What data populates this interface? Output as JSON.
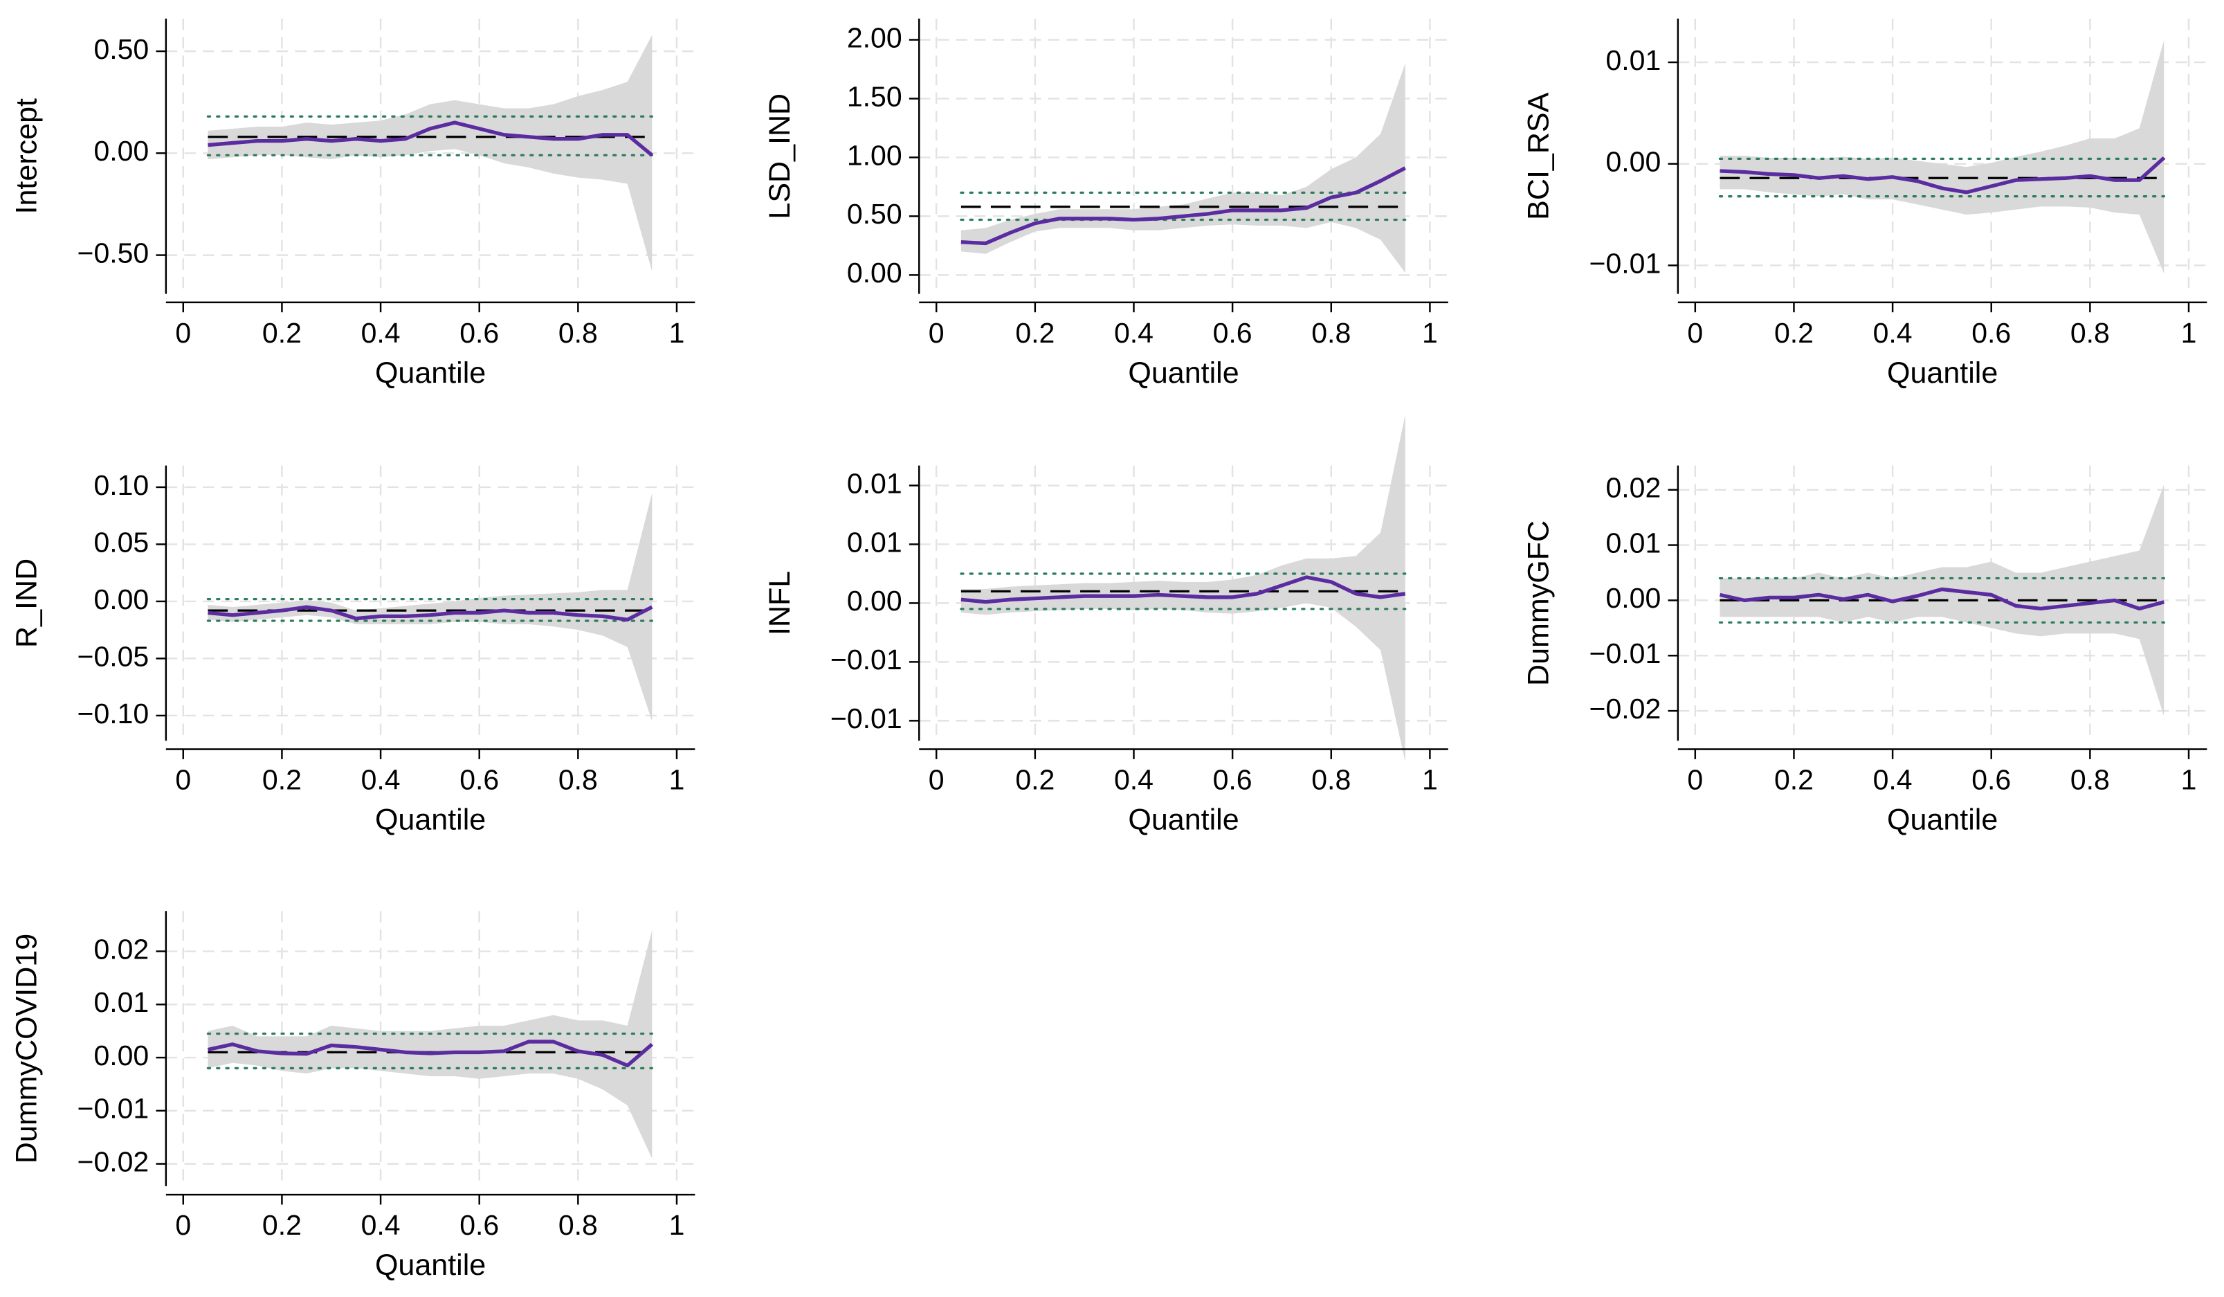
{
  "chart_data": [
    {
      "type": "line",
      "y_label": "Intercept",
      "x_label": "Quantile",
      "x": [
        0.05,
        0.1,
        0.15,
        0.2,
        0.25,
        0.3,
        0.35,
        0.4,
        0.45,
        0.5,
        0.55,
        0.6,
        0.65,
        0.7,
        0.75,
        0.8,
        0.85,
        0.9,
        0.95
      ],
      "xlim": [
        -0.035,
        1.037
      ],
      "xticks": [
        0,
        0.2,
        0.4,
        0.6,
        0.8,
        1
      ],
      "ylim": [
        -0.69,
        0.66
      ],
      "yticks": [
        {
          "value": 0.5,
          "label": "0.50"
        },
        {
          "value": 0,
          "label": "0.00"
        },
        {
          "value": -0.5,
          "label": "−0.50"
        }
      ],
      "grid": true,
      "series": [
        {
          "color": "#5b2ca0",
          "values": [
            0.04,
            0.05,
            0.06,
            0.06,
            0.07,
            0.06,
            0.07,
            0.06,
            0.07,
            0.12,
            0.15,
            0.12,
            0.09,
            0.08,
            0.07,
            0.07,
            0.09,
            0.09,
            -0.01
          ]
        }
      ],
      "band": {
        "color": "#d9d9d9",
        "lower": [
          -0.03,
          -0.02,
          -0.01,
          -0.01,
          -0.02,
          -0.03,
          -0.01,
          -0.02,
          -0.01,
          0.01,
          0.02,
          -0.01,
          -0.05,
          -0.07,
          -0.1,
          -0.12,
          -0.13,
          -0.15,
          -0.58
        ],
        "upper": [
          0.11,
          0.12,
          0.13,
          0.13,
          0.15,
          0.14,
          0.15,
          0.16,
          0.19,
          0.24,
          0.26,
          0.24,
          0.22,
          0.22,
          0.24,
          0.28,
          0.31,
          0.35,
          0.58
        ]
      },
      "ref_line": {
        "value": 0.08,
        "color": "#000000"
      },
      "ref_band": {
        "lower": -0.01,
        "upper": 0.18,
        "color": "#2e7d5b"
      }
    },
    {
      "type": "line",
      "y_label": "LSD_IND",
      "x_label": "Quantile",
      "x": [
        0.05,
        0.1,
        0.15,
        0.2,
        0.25,
        0.3,
        0.35,
        0.4,
        0.45,
        0.5,
        0.55,
        0.6,
        0.65,
        0.7,
        0.75,
        0.8,
        0.85,
        0.9,
        0.95
      ],
      "xlim": [
        -0.035,
        1.037
      ],
      "xticks": [
        0,
        0.2,
        0.4,
        0.6,
        0.8,
        1
      ],
      "ylim": [
        -0.16,
        2.18
      ],
      "yticks": [
        {
          "value": 2,
          "label": "2.00"
        },
        {
          "value": 1.5,
          "label": "1.50"
        },
        {
          "value": 1,
          "label": "1.00"
        },
        {
          "value": 0.5,
          "label": "0.50"
        },
        {
          "value": 0,
          "label": "0.00"
        }
      ],
      "grid": true,
      "series": [
        {
          "color": "#5b2ca0",
          "values": [
            0.28,
            0.27,
            0.36,
            0.44,
            0.48,
            0.48,
            0.48,
            0.47,
            0.48,
            0.5,
            0.52,
            0.55,
            0.55,
            0.55,
            0.57,
            0.66,
            0.7,
            0.8,
            0.91
          ]
        }
      ],
      "band": {
        "color": "#d9d9d9",
        "lower": [
          0.2,
          0.18,
          0.28,
          0.37,
          0.4,
          0.4,
          0.4,
          0.38,
          0.38,
          0.4,
          0.42,
          0.43,
          0.42,
          0.42,
          0.4,
          0.45,
          0.4,
          0.3,
          0.02
        ],
        "upper": [
          0.38,
          0.4,
          0.47,
          0.52,
          0.56,
          0.56,
          0.56,
          0.56,
          0.58,
          0.6,
          0.65,
          0.7,
          0.7,
          0.68,
          0.75,
          0.9,
          1.0,
          1.2,
          1.8
        ]
      },
      "ref_line": {
        "value": 0.58,
        "color": "#000000"
      },
      "ref_band": {
        "lower": 0.47,
        "upper": 0.7,
        "color": "#2e7d5b"
      }
    },
    {
      "type": "line",
      "y_label": "BCI_RSA",
      "x_label": "Quantile",
      "x": [
        0.05,
        0.1,
        0.15,
        0.2,
        0.25,
        0.3,
        0.35,
        0.4,
        0.45,
        0.5,
        0.55,
        0.6,
        0.65,
        0.7,
        0.75,
        0.8,
        0.85,
        0.9,
        0.95
      ],
      "xlim": [
        -0.035,
        1.037
      ],
      "xticks": [
        0,
        0.2,
        0.4,
        0.6,
        0.8,
        1
      ],
      "ylim": [
        -0.0128,
        0.0143
      ],
      "yticks": [
        0.01,
        {
          "value": 0,
          "label": "0.00"
        },
        {
          "value": -0.01,
          "label": "−0.01"
        }
      ],
      "grid": true,
      "series": [
        {
          "color": "#5b2ca0",
          "values": [
            -0.0007,
            -0.0008,
            -0.001,
            -0.0011,
            -0.0014,
            -0.0012,
            -0.0015,
            -0.0013,
            -0.0017,
            -0.0024,
            -0.0028,
            -0.0022,
            -0.0016,
            -0.0015,
            -0.0014,
            -0.0012,
            -0.0016,
            -0.0016,
            0.0006
          ]
        }
      ],
      "band": {
        "color": "#d9d9d9",
        "lower": [
          -0.0025,
          -0.0025,
          -0.0028,
          -0.003,
          -0.0032,
          -0.003,
          -0.0035,
          -0.0035,
          -0.004,
          -0.0045,
          -0.005,
          -0.0048,
          -0.0045,
          -0.0042,
          -0.0042,
          -0.0043,
          -0.0048,
          -0.005,
          -0.0108
        ],
        "upper": [
          0.0008,
          0.0008,
          0.0006,
          0.0006,
          0.0005,
          0.0007,
          0.0005,
          0.0006,
          0.0003,
          0,
          -0.0003,
          0.0001,
          0.0007,
          0.0012,
          0.0018,
          0.0025,
          0.0025,
          0.0035,
          0.0122
        ]
      },
      "ref_line": {
        "value": -0.0014,
        "color": "#000000"
      },
      "ref_band": {
        "lower": -0.0032,
        "upper": 0.0005,
        "color": "#2e7d5b"
      }
    },
    {
      "type": "line",
      "y_label": "R_IND",
      "x_label": "Quantile",
      "x": [
        0.05,
        0.1,
        0.15,
        0.2,
        0.25,
        0.3,
        0.35,
        0.4,
        0.45,
        0.5,
        0.55,
        0.6,
        0.65,
        0.7,
        0.75,
        0.8,
        0.85,
        0.9,
        0.95
      ],
      "xlim": [
        -0.035,
        1.037
      ],
      "xticks": [
        0,
        0.2,
        0.4,
        0.6,
        0.8,
        1
      ],
      "ylim": [
        -0.122,
        0.119
      ],
      "yticks": [
        {
          "value": 0.1,
          "label": "0.10"
        },
        0.05,
        {
          "value": 0,
          "label": "0.00"
        },
        {
          "value": -0.05,
          "label": "−0.05"
        },
        {
          "value": -0.1,
          "label": "−0.10"
        }
      ],
      "grid": true,
      "series": [
        {
          "color": "#5b2ca0",
          "values": [
            -0.01,
            -0.012,
            -0.01,
            -0.008,
            -0.005,
            -0.008,
            -0.015,
            -0.013,
            -0.013,
            -0.012,
            -0.01,
            -0.01,
            -0.008,
            -0.01,
            -0.01,
            -0.012,
            -0.013,
            -0.016,
            -0.005
          ]
        }
      ],
      "band": {
        "color": "#d9d9d9",
        "lower": [
          -0.016,
          -0.018,
          -0.016,
          -0.014,
          -0.012,
          -0.014,
          -0.02,
          -0.02,
          -0.02,
          -0.02,
          -0.018,
          -0.018,
          -0.02,
          -0.02,
          -0.022,
          -0.025,
          -0.03,
          -0.04,
          -0.105
        ],
        "upper": [
          -0.003,
          -0.005,
          -0.003,
          -0.001,
          0.001,
          -0.001,
          -0.008,
          -0.006,
          -0.004,
          -0.002,
          0,
          0.003,
          0.005,
          0.006,
          0.007,
          0.008,
          0.01,
          0.01,
          0.095
        ]
      },
      "ref_line": {
        "value": -0.008,
        "color": "#000000"
      },
      "ref_band": {
        "lower": -0.017,
        "upper": 0.002,
        "color": "#2e7d5b"
      }
    },
    {
      "type": "line",
      "y_label": "INFL",
      "x_label": "Quantile",
      "x": [
        0.05,
        0.1,
        0.15,
        0.2,
        0.25,
        0.3,
        0.35,
        0.4,
        0.45,
        0.5,
        0.55,
        0.6,
        0.65,
        0.7,
        0.75,
        0.8,
        0.85,
        0.9,
        0.95
      ],
      "xlim": [
        -0.035,
        1.037
      ],
      "xticks": [
        0,
        0.2,
        0.4,
        0.6,
        0.8,
        1
      ],
      "ylim": [
        -0.0117,
        0.0117
      ],
      "yticks": [
        0.01,
        {
          "value": 0.005,
          "label": "0.01"
        },
        {
          "value": 0,
          "label": "0.00"
        },
        {
          "value": -0.005,
          "label": "−0.01"
        },
        {
          "value": -0.01,
          "label": "−0.01"
        }
      ],
      "grid": true,
      "series": [
        {
          "color": "#5b2ca0",
          "values": [
            0.0003,
            0.0001,
            0.0003,
            0.0004,
            0.0005,
            0.0006,
            0.0006,
            0.0006,
            0.0007,
            0.0006,
            0.0005,
            0.0005,
            0.0008,
            0.0015,
            0.0022,
            0.0018,
            0.0008,
            0.0005,
            0.0008
          ]
        }
      ],
      "band": {
        "color": "#d9d9d9",
        "lower": [
          -0.0008,
          -0.001,
          -0.0008,
          -0.0007,
          -0.0006,
          -0.0005,
          -0.0005,
          -0.0006,
          -0.0005,
          -0.0006,
          -0.0008,
          -0.0009,
          -0.0007,
          -0.0004,
          0,
          -0.0004,
          -0.002,
          -0.004,
          -0.0135
        ],
        "upper": [
          0.0012,
          0.0012,
          0.0014,
          0.0015,
          0.0016,
          0.0017,
          0.0017,
          0.0018,
          0.0019,
          0.0018,
          0.0018,
          0.002,
          0.0024,
          0.0032,
          0.0038,
          0.0038,
          0.004,
          0.006,
          0.016
        ]
      },
      "ref_line": {
        "value": 0.001,
        "color": "#000000"
      },
      "ref_band": {
        "lower": -0.0005,
        "upper": 0.0025,
        "color": "#2e7d5b"
      }
    },
    {
      "type": "line",
      "y_label": "DummyGFC",
      "x_label": "Quantile",
      "x": [
        0.05,
        0.1,
        0.15,
        0.2,
        0.25,
        0.3,
        0.35,
        0.4,
        0.45,
        0.5,
        0.55,
        0.6,
        0.65,
        0.7,
        0.75,
        0.8,
        0.85,
        0.9,
        0.95
      ],
      "xlim": [
        -0.035,
        1.037
      ],
      "xticks": [
        0,
        0.2,
        0.4,
        0.6,
        0.8,
        1
      ],
      "ylim": [
        -0.0254,
        0.0244
      ],
      "yticks": [
        0.02,
        0.01,
        {
          "value": 0,
          "label": "0.00"
        },
        {
          "value": -0.01,
          "label": "−0.01"
        },
        {
          "value": -0.02,
          "label": "−0.02"
        }
      ],
      "grid": true,
      "series": [
        {
          "color": "#5b2ca0",
          "values": [
            0.001,
            0,
            0.0005,
            0.0005,
            0.001,
            0.0002,
            0.001,
            -0.0002,
            0.0008,
            0.002,
            0.0015,
            0.001,
            -0.001,
            -0.0015,
            -0.001,
            -0.0005,
            0,
            -0.0015,
            -0.0003
          ]
        }
      ],
      "band": {
        "color": "#d9d9d9",
        "lower": [
          -0.003,
          -0.003,
          -0.003,
          -0.003,
          -0.003,
          -0.004,
          -0.003,
          -0.004,
          -0.003,
          -0.003,
          -0.004,
          -0.005,
          -0.006,
          -0.0065,
          -0.006,
          -0.006,
          -0.006,
          -0.007,
          -0.021
        ],
        "upper": [
          0.004,
          0.004,
          0.004,
          0.004,
          0.005,
          0.004,
          0.005,
          0.004,
          0.005,
          0.006,
          0.006,
          0.007,
          0.005,
          0.005,
          0.006,
          0.007,
          0.008,
          0.009,
          0.021
        ]
      },
      "ref_line": {
        "value": 0,
        "color": "#000000"
      },
      "ref_band": {
        "lower": -0.004,
        "upper": 0.004,
        "color": "#2e7d5b"
      }
    },
    {
      "type": "line",
      "y_label": "DummyCOVID19",
      "x_label": "Quantile",
      "x": [
        0.05,
        0.1,
        0.15,
        0.2,
        0.25,
        0.3,
        0.35,
        0.4,
        0.45,
        0.5,
        0.55,
        0.6,
        0.65,
        0.7,
        0.75,
        0.8,
        0.85,
        0.9,
        0.95
      ],
      "xlim": [
        -0.035,
        1.037
      ],
      "xticks": [
        0,
        0.2,
        0.4,
        0.6,
        0.8,
        1
      ],
      "ylim": [
        -0.0242,
        0.0276
      ],
      "yticks": [
        0.02,
        0.01,
        {
          "value": 0,
          "label": "0.00"
        },
        {
          "value": -0.01,
          "label": "−0.01"
        },
        {
          "value": -0.02,
          "label": "−0.02"
        }
      ],
      "grid": true,
      "series": [
        {
          "color": "#5b2ca0",
          "values": [
            0.0015,
            0.0025,
            0.0012,
            0.0008,
            0.0007,
            0.0023,
            0.002,
            0.0015,
            0.001,
            0.0008,
            0.001,
            0.001,
            0.0012,
            0.003,
            0.003,
            0.0012,
            0.0005,
            -0.0015,
            0.0025
          ]
        }
      ],
      "band": {
        "color": "#d9d9d9",
        "lower": [
          -0.002,
          -0.001,
          -0.0015,
          -0.0025,
          -0.003,
          -0.002,
          -0.002,
          -0.0025,
          -0.003,
          -0.0035,
          -0.0035,
          -0.004,
          -0.0035,
          -0.003,
          -0.003,
          -0.004,
          -0.006,
          -0.009,
          -0.019
        ],
        "upper": [
          0.005,
          0.006,
          0.004,
          0.004,
          0.004,
          0.006,
          0.0055,
          0.005,
          0.005,
          0.005,
          0.0055,
          0.006,
          0.006,
          0.007,
          0.008,
          0.007,
          0.007,
          0.006,
          0.024
        ]
      },
      "ref_line": {
        "value": 0.001,
        "color": "#000000"
      },
      "ref_band": {
        "lower": -0.002,
        "upper": 0.0045,
        "color": "#2e7d5b"
      }
    }
  ]
}
